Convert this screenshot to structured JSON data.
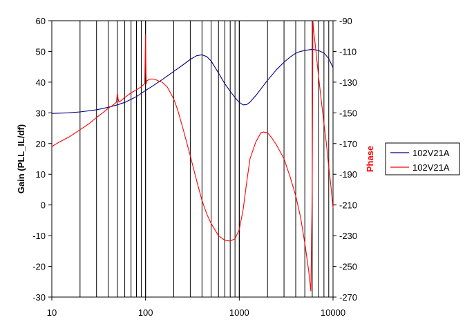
{
  "chart_data": {
    "type": "line",
    "title": "",
    "xlabel": "",
    "ylabel": "Gain (PLL_IL/df)",
    "y2label": "Phase",
    "x_scale": "log",
    "xlim": [
      10,
      10000
    ],
    "ylim": [
      -30,
      60
    ],
    "y2lim": [
      -270,
      -90
    ],
    "x_ticks": [
      "10",
      "100",
      "1000",
      "10000"
    ],
    "y_ticks": [
      "60",
      "50",
      "40",
      "30",
      "20",
      "10",
      "0",
      "-10",
      "-20",
      "-30"
    ],
    "y2_ticks": [
      "-90",
      "-110",
      "-130",
      "-150",
      "-170",
      "-190",
      "-210",
      "-230",
      "-250",
      "-270"
    ],
    "grid": "vertical log gridlines",
    "legend_position": "right",
    "series": [
      {
        "name": "102V21A",
        "axis": "left",
        "color": "#000080",
        "x": [
          10,
          15,
          20,
          30,
          40,
          50,
          60,
          70,
          80,
          100,
          120,
          150,
          200,
          250,
          300,
          350,
          400,
          450,
          500,
          600,
          700,
          800,
          900,
          1000,
          1100,
          1200,
          1300,
          1500,
          1700,
          2000,
          2500,
          3000,
          3500,
          4000,
          4500,
          5000,
          6000,
          7000,
          8000,
          9000,
          10000
        ],
        "y": [
          29.8,
          30.0,
          30.3,
          31.0,
          31.8,
          32.6,
          33.4,
          34.4,
          35.3,
          37.3,
          38.8,
          40.8,
          43.5,
          45.6,
          47.4,
          48.6,
          48.9,
          48.3,
          46.9,
          43.0,
          39.5,
          37.0,
          35.0,
          33.4,
          32.6,
          32.7,
          33.5,
          35.6,
          37.8,
          40.6,
          44.1,
          46.5,
          48.2,
          49.4,
          50.0,
          50.3,
          50.7,
          50.3,
          49.5,
          47.7,
          44.7
        ]
      },
      {
        "name": "102V21A",
        "axis": "right",
        "color": "#FF0000",
        "x": [
          10,
          12,
          15,
          20,
          25,
          30,
          35,
          40,
          45,
          49,
          50,
          51,
          52,
          55,
          60,
          70,
          80,
          90,
          98,
          100,
          101,
          102,
          103,
          105,
          110,
          120,
          130,
          140,
          150,
          170,
          200,
          220,
          250,
          300,
          350,
          400,
          450,
          500,
          600,
          700,
          800,
          900,
          1000,
          1100,
          1200,
          1300,
          1500,
          1700,
          1800,
          2000,
          2200,
          2500,
          3000,
          3500,
          4000,
          4500,
          5000,
          5500,
          5800,
          6000,
          6100,
          6200,
          6500,
          7000,
          7500,
          8000,
          8500,
          9000,
          9500,
          10000
        ],
        "y": [
          -172.0,
          -169.0,
          -166.0,
          -161.0,
          -157.0,
          -153.0,
          -150.0,
          -147.0,
          -145.0,
          -143.0,
          -137.0,
          -141.0,
          -143.0,
          -142.0,
          -140.0,
          -137.0,
          -135.0,
          -133.0,
          -131.0,
          -99.0,
          -125.0,
          -131.0,
          -129.0,
          -129.0,
          -128.0,
          -128.0,
          -128.5,
          -129.5,
          -130.0,
          -133.0,
          -141.0,
          -148.0,
          -160.0,
          -178.0,
          -194.0,
          -207.0,
          -216.0,
          -222.0,
          -230.0,
          -233.0,
          -233.5,
          -232.0,
          -226.0,
          -213.0,
          -195.0,
          -180.0,
          -169.0,
          -163.0,
          -162.5,
          -163.0,
          -166.0,
          -171.0,
          -180.0,
          -192.0,
          -204.0,
          -218.0,
          -235.0,
          -253.0,
          -266.0,
          -200.0,
          -90.0,
          -96.0,
          -107.0,
          -126.0,
          -142.0,
          -157.0,
          -170.0,
          -185.0,
          -198.0,
          -212.0
        ]
      }
    ]
  }
}
